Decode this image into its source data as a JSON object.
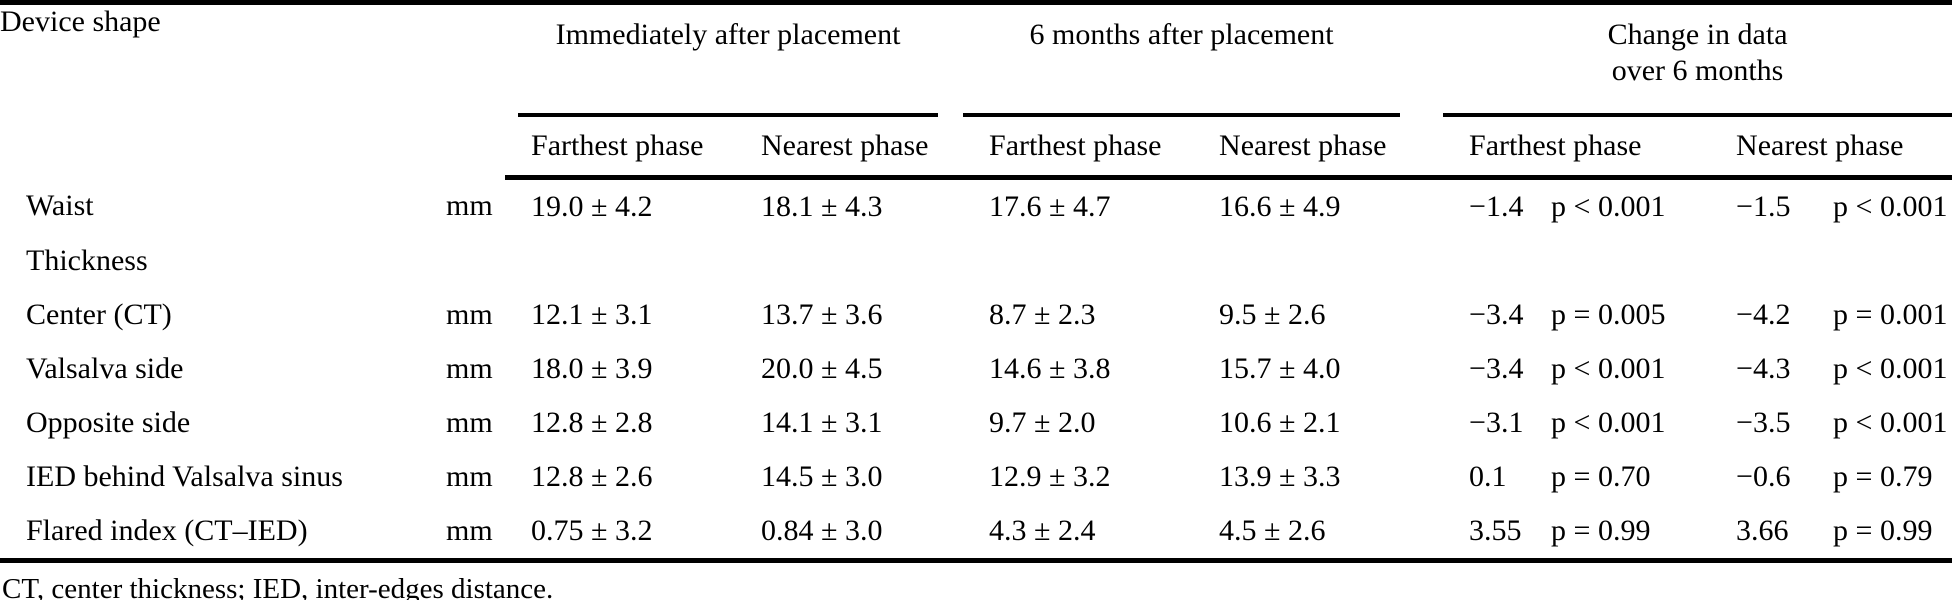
{
  "table": {
    "device_shape_header": "Device shape",
    "groups": {
      "immediately": "Immediately after placement",
      "six_months": "6 months after placement",
      "change_line1": "Change in data",
      "change_line2": "over 6 months"
    },
    "subheaders": {
      "imm_far": "Farthest phase",
      "imm_near": "Nearest phase",
      "m6_far": "Farthest phase",
      "m6_near": "Nearest phase",
      "chg_far": "Farthest phase",
      "chg_near": "Nearest phase"
    },
    "rows": [
      {
        "label": "Waist",
        "unit": "mm",
        "imm_far": "19.0 ± 4.2",
        "imm_near": "18.1 ± 4.3",
        "m6_far": "17.6 ± 4.7",
        "m6_near": "16.6 ± 4.9",
        "chg_far": "−1.4",
        "chg_far_p": "p < 0.001",
        "chg_near": "−1.5",
        "chg_near_p": "p < 0.001"
      },
      {
        "label": "Thickness",
        "unit": "",
        "imm_far": "",
        "imm_near": "",
        "m6_far": "",
        "m6_near": "",
        "chg_far": "",
        "chg_far_p": "",
        "chg_near": "",
        "chg_near_p": ""
      },
      {
        "label": "Center (CT)",
        "unit": "mm",
        "imm_far": "12.1 ± 3.1",
        "imm_near": "13.7 ± 3.6",
        "m6_far": "8.7 ± 2.3",
        "m6_near": "9.5 ± 2.6",
        "chg_far": "−3.4",
        "chg_far_p": "p = 0.005",
        "chg_near": "−4.2",
        "chg_near_p": "p = 0.001"
      },
      {
        "label": "Valsalva side",
        "unit": "mm",
        "imm_far": "18.0 ± 3.9",
        "imm_near": "20.0 ± 4.5",
        "m6_far": "14.6 ± 3.8",
        "m6_near": "15.7 ± 4.0",
        "chg_far": "−3.4",
        "chg_far_p": "p < 0.001",
        "chg_near": "−4.3",
        "chg_near_p": "p < 0.001"
      },
      {
        "label": "Opposite side",
        "unit": "mm",
        "imm_far": "12.8 ± 2.8",
        "imm_near": "14.1 ± 3.1",
        "m6_far": "9.7 ± 2.0",
        "m6_near": "10.6 ± 2.1",
        "chg_far": "−3.1",
        "chg_far_p": "p < 0.001",
        "chg_near": "−3.5",
        "chg_near_p": "p < 0.001"
      },
      {
        "label": "IED behind Valsalva sinus",
        "unit": "mm",
        "imm_far": "12.8 ± 2.6",
        "imm_near": "14.5 ± 3.0",
        "m6_far": "12.9 ± 3.2",
        "m6_near": "13.9 ± 3.3",
        "chg_far": "0.1",
        "chg_far_p": "p = 0.70",
        "chg_near": "−0.6",
        "chg_near_p": "p = 0.79"
      },
      {
        "label": "Flared index (CT–IED)",
        "unit": "mm",
        "imm_far": "0.75 ± 3.2",
        "imm_near": "0.84 ± 3.0",
        "m6_far": "4.3 ± 2.4",
        "m6_near": "4.5 ± 2.6",
        "chg_far": "3.55",
        "chg_far_p": "p = 0.99",
        "chg_near": "3.66",
        "chg_near_p": "p = 0.99"
      }
    ],
    "footnote": "CT, center thickness; IED, inter-edges distance."
  }
}
